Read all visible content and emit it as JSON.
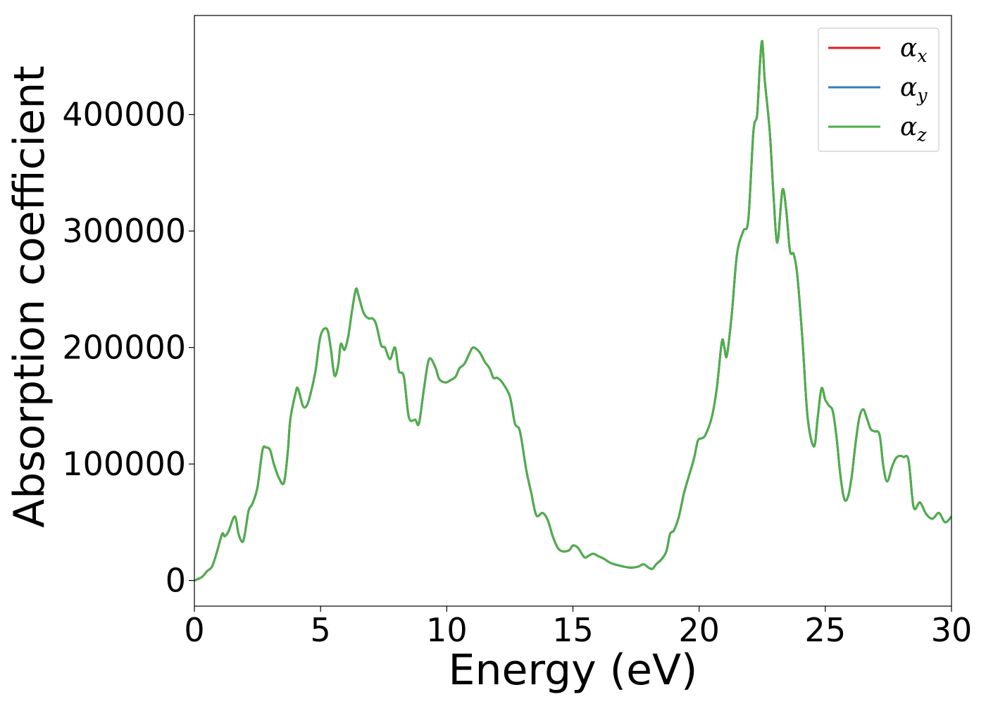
{
  "chart_data": {
    "type": "line",
    "xlabel": "Energy (eV)",
    "ylabel": "Absorption coefficient",
    "xlim": [
      0,
      30
    ],
    "ylim": [
      -22000,
      485000
    ],
    "xticks": [
      0,
      5,
      10,
      15,
      20,
      25,
      30
    ],
    "yticks": [
      0,
      100000,
      200000,
      300000,
      400000
    ],
    "grid": false,
    "legend_position": "top-right",
    "series": [
      {
        "name": "αx",
        "name_main": "α",
        "name_sub": "x",
        "color": "#e41a1c",
        "x": [
          0,
          0.3,
          0.5,
          0.7,
          0.9,
          1.1,
          1.2,
          1.35,
          1.6,
          1.75,
          1.9,
          2.0,
          2.15,
          2.3,
          2.5,
          2.7,
          2.85,
          3.0,
          3.15,
          3.35,
          3.55,
          3.7,
          3.8,
          4.0,
          4.1,
          4.3,
          4.45,
          4.6,
          4.8,
          5.0,
          5.25,
          5.4,
          5.55,
          5.7,
          5.8,
          5.95,
          6.1,
          6.25,
          6.4,
          6.5,
          6.7,
          6.9,
          7.05,
          7.2,
          7.4,
          7.55,
          7.75,
          7.95,
          8.1,
          8.3,
          8.5,
          8.75,
          8.9,
          9.1,
          9.3,
          9.55,
          9.7,
          9.95,
          10.15,
          10.35,
          10.5,
          10.7,
          10.9,
          11.05,
          11.3,
          11.5,
          11.7,
          11.85,
          12.0,
          12.2,
          12.5,
          12.7,
          12.9,
          13.15,
          13.35,
          13.55,
          13.8,
          14.0,
          14.2,
          14.4,
          14.6,
          14.85,
          15.0,
          15.2,
          15.45,
          15.6,
          15.8,
          16.0,
          16.2,
          16.5,
          16.8,
          17.0,
          17.3,
          17.6,
          17.8,
          18.0,
          18.15,
          18.3,
          18.5,
          18.7,
          18.85,
          19.0,
          19.2,
          19.4,
          19.6,
          19.8,
          19.95,
          20.1,
          20.25,
          20.5,
          20.7,
          20.9,
          21.0,
          21.1,
          21.3,
          21.5,
          21.75,
          21.95,
          22.15,
          22.3,
          22.4,
          22.5,
          22.6,
          22.8,
          22.95,
          23.1,
          23.3,
          23.45,
          23.6,
          23.75,
          23.9,
          24.1,
          24.3,
          24.55,
          24.7,
          24.85,
          25.0,
          25.15,
          25.3,
          25.45,
          25.6,
          25.75,
          25.9,
          26.05,
          26.2,
          26.35,
          26.5,
          26.65,
          26.8,
          26.95,
          27.15,
          27.3,
          27.45,
          27.65,
          27.8,
          27.95,
          28.1,
          28.3,
          28.5,
          28.75,
          29.0,
          29.25,
          29.5,
          29.75,
          30.0
        ],
        "y": [
          0,
          3000,
          8000,
          12000,
          25000,
          40000,
          38000,
          42000,
          55000,
          40000,
          33000,
          40000,
          60000,
          66000,
          80000,
          112000,
          114000,
          112000,
          100000,
          88000,
          84000,
          110000,
          138000,
          160000,
          165000,
          150000,
          150000,
          160000,
          180000,
          210000,
          216000,
          200000,
          176000,
          185000,
          203000,
          198000,
          210000,
          232000,
          250000,
          245000,
          230000,
          225000,
          225000,
          220000,
          202000,
          200000,
          190000,
          200000,
          180000,
          175000,
          140000,
          138000,
          135000,
          165000,
          190000,
          183000,
          173000,
          170000,
          172000,
          175000,
          182000,
          186000,
          195000,
          200000,
          196000,
          188000,
          182000,
          174000,
          174000,
          170000,
          158000,
          135000,
          128000,
          95000,
          75000,
          56000,
          58000,
          52000,
          38000,
          28000,
          25000,
          26000,
          30000,
          28000,
          20000,
          21000,
          23000,
          21000,
          19000,
          15000,
          13000,
          12000,
          11000,
          12000,
          14000,
          11000,
          10000,
          14000,
          18000,
          25000,
          40000,
          43000,
          55000,
          75000,
          90000,
          105000,
          120000,
          122000,
          125000,
          140000,
          165000,
          205000,
          200000,
          193000,
          230000,
          280000,
          300000,
          310000,
          385000,
          400000,
          440000,
          463000,
          430000,
          385000,
          330000,
          290000,
          335000,
          318000,
          283000,
          280000,
          260000,
          205000,
          140000,
          115000,
          140000,
          165000,
          155000,
          150000,
          145000,
          122000,
          90000,
          70000,
          72000,
          90000,
          118000,
          140000,
          147000,
          139000,
          130000,
          128000,
          125000,
          98000,
          85000,
          98000,
          105000,
          107000,
          106000,
          103000,
          63000,
          67000,
          57000,
          53000,
          58000,
          50000,
          55000
        ]
      },
      {
        "name": "αy",
        "name_main": "α",
        "name_sub": "y",
        "color": "#377eb8",
        "same_as": "αx"
      },
      {
        "name": "αz",
        "name_main": "α",
        "name_sub": "z",
        "color": "#4daf4a",
        "same_as": "αx"
      }
    ]
  }
}
